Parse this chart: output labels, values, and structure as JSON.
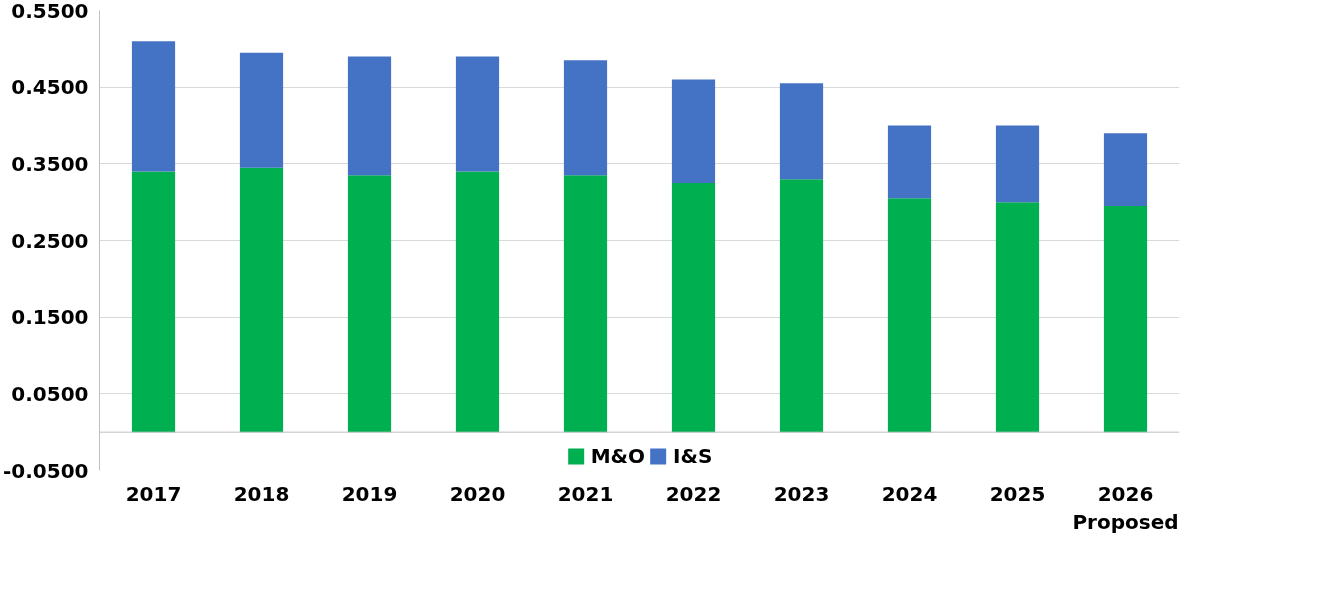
{
  "chart_data": {
    "type": "bar",
    "stacked": true,
    "categories": [
      "2017",
      "2018",
      "2019",
      "2020",
      "2021",
      "2022",
      "2023",
      "2024",
      "2025",
      "2026\nProposed"
    ],
    "series": [
      {
        "name": "M&O",
        "color": "#00b050",
        "values": [
          0.34,
          0.345,
          0.335,
          0.34,
          0.335,
          0.325,
          0.33,
          0.305,
          0.3,
          0.295
        ]
      },
      {
        "name": "I&S",
        "color": "#4472c4",
        "values": [
          0.17,
          0.15,
          0.155,
          0.15,
          0.15,
          0.135,
          0.125,
          0.095,
          0.1,
          0.095
        ]
      }
    ],
    "ylim": [
      -0.05,
      0.55
    ],
    "yticks": [
      {
        "value": -0.05,
        "label": "-0.0500"
      },
      {
        "value": 0.05,
        "label": "0.0500"
      },
      {
        "value": 0.15,
        "label": "0.1500"
      },
      {
        "value": 0.25,
        "label": "0.2500"
      },
      {
        "value": 0.35,
        "label": "0.3500"
      },
      {
        "value": 0.45,
        "label": "0.4500"
      },
      {
        "value": 0.55,
        "label": "0.5500"
      }
    ],
    "grid": "y",
    "legend": "bottom"
  }
}
